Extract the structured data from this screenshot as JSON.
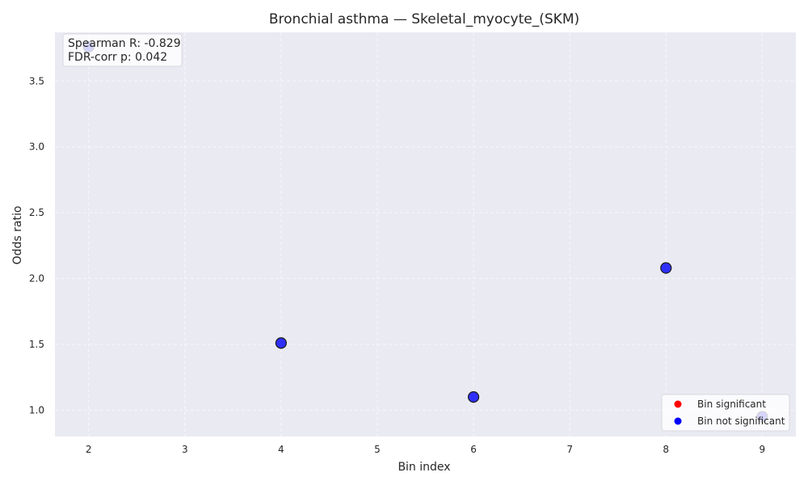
{
  "chart_data": {
    "type": "scatter",
    "title": "Bronchial asthma — Skeletal_myocyte_(SKM)",
    "xlabel": "Bin index",
    "ylabel": "Odds ratio",
    "xlim": [
      1.65,
      9.35
    ],
    "ylim": [
      0.8,
      3.87
    ],
    "xticks": [
      2,
      3,
      4,
      5,
      6,
      7,
      8,
      9
    ],
    "yticks": [
      1.0,
      1.5,
      2.0,
      2.5,
      3.0,
      3.5
    ],
    "grid": true,
    "background_color": "#eaeaf2",
    "points": [
      {
        "x": 2,
        "y": 3.76,
        "significant": false
      },
      {
        "x": 4,
        "y": 1.51,
        "significant": false
      },
      {
        "x": 6,
        "y": 1.1,
        "significant": false
      },
      {
        "x": 8,
        "y": 2.08,
        "significant": false
      },
      {
        "x": 9,
        "y": 0.95,
        "significant": false
      }
    ],
    "annotation": {
      "lines": [
        "Spearman R: -0.829",
        "FDR-corr p: 0.042"
      ],
      "placement": "top-left"
    },
    "legend": {
      "placement": "bottom-right",
      "entries": [
        {
          "label": "Bin significant",
          "color": "#ff0000"
        },
        {
          "label": "Bin not significant",
          "color": "#0000ff"
        }
      ]
    },
    "colors": {
      "not_significant": "#0000ff",
      "significant": "#ff0000",
      "point_edge": "#1a1a1a"
    }
  }
}
